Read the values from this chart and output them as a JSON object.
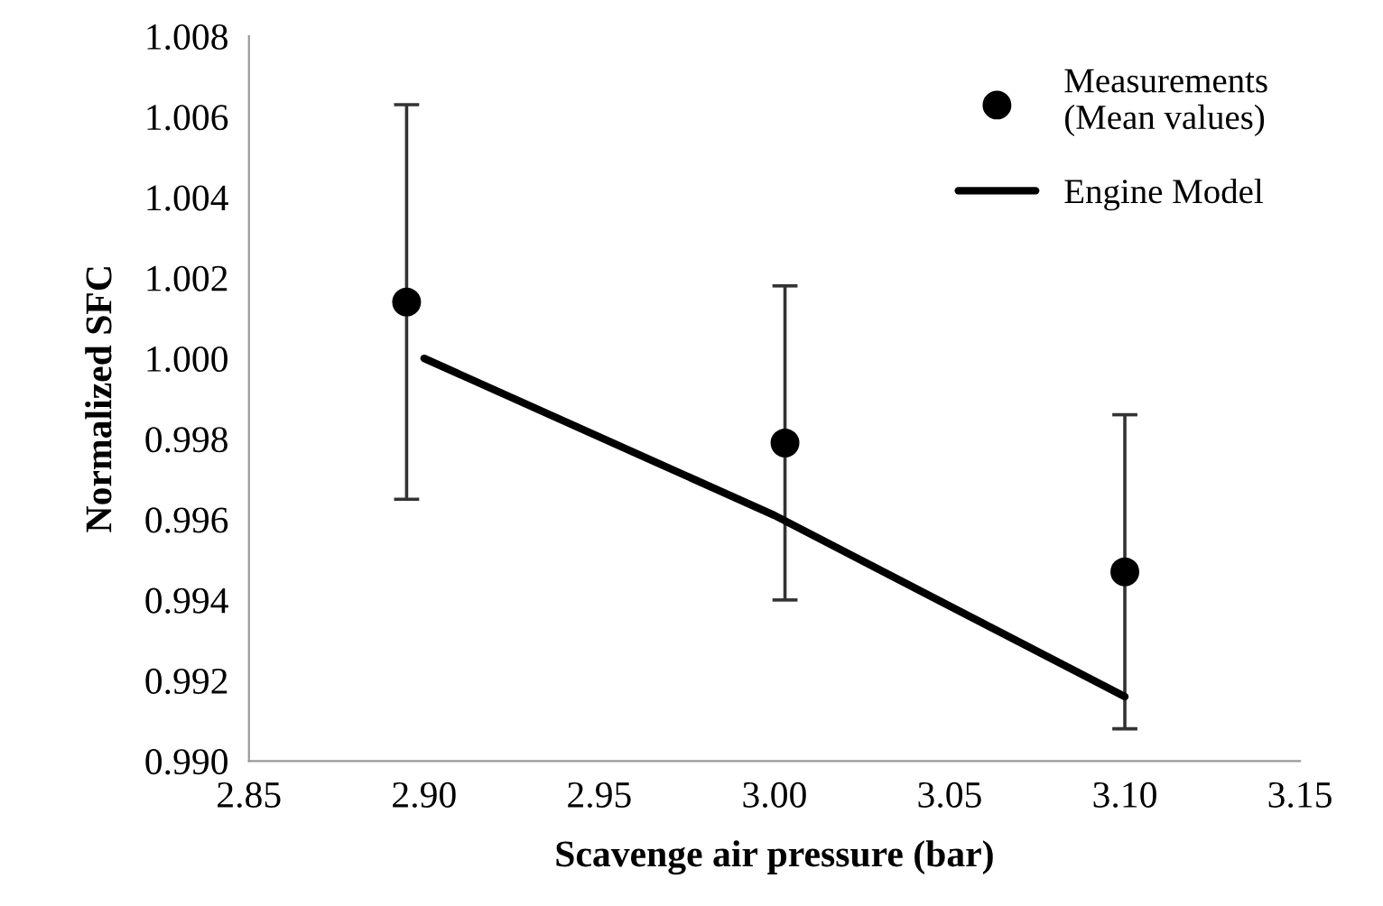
{
  "chart_data": {
    "type": "scatter",
    "xlabel": "Scavenge air pressure (bar)",
    "ylabel": "Normalized SFC",
    "xlim": [
      2.85,
      3.15
    ],
    "xticks": [
      {
        "value": 2.85,
        "label": "2.85"
      },
      {
        "value": 2.9,
        "label": "2.90"
      },
      {
        "value": 2.95,
        "label": "2.95"
      },
      {
        "value": 3.0,
        "label": "3.00"
      },
      {
        "value": 3.05,
        "label": "3.05"
      },
      {
        "value": 3.1,
        "label": "3.10"
      },
      {
        "value": 3.15,
        "label": "3.15"
      }
    ],
    "ylim": [
      0.99,
      1.008
    ],
    "yticks": [
      {
        "value": 0.99,
        "label": "0.990"
      },
      {
        "value": 0.992,
        "label": "0.992"
      },
      {
        "value": 0.994,
        "label": "0.994"
      },
      {
        "value": 0.996,
        "label": "0.996"
      },
      {
        "value": 0.998,
        "label": "0.998"
      },
      {
        "value": 1.0,
        "label": "1.000"
      },
      {
        "value": 1.002,
        "label": "1.002"
      },
      {
        "value": 1.004,
        "label": "1.004"
      },
      {
        "value": 1.006,
        "label": "1.006"
      },
      {
        "value": 1.008,
        "label": "1.008"
      }
    ],
    "grid": false,
    "legend": "top right",
    "series": [
      {
        "name": "Measurements\n(Mean values)",
        "color": "#000000",
        "marker": "circle",
        "x": [
          2.895,
          3.003,
          3.1
        ],
        "values": [
          1.0014,
          0.9979,
          0.9947
        ],
        "errors": [
          0.0049,
          0.0039,
          0.0039
        ]
      },
      {
        "name": "Engine Model",
        "type": "line",
        "color": "#000000",
        "marker": "none",
        "line_style": "solid",
        "x": [
          2.9,
          3.0,
          3.1
        ],
        "values": [
          1.0,
          0.9961,
          0.9916
        ]
      }
    ]
  }
}
